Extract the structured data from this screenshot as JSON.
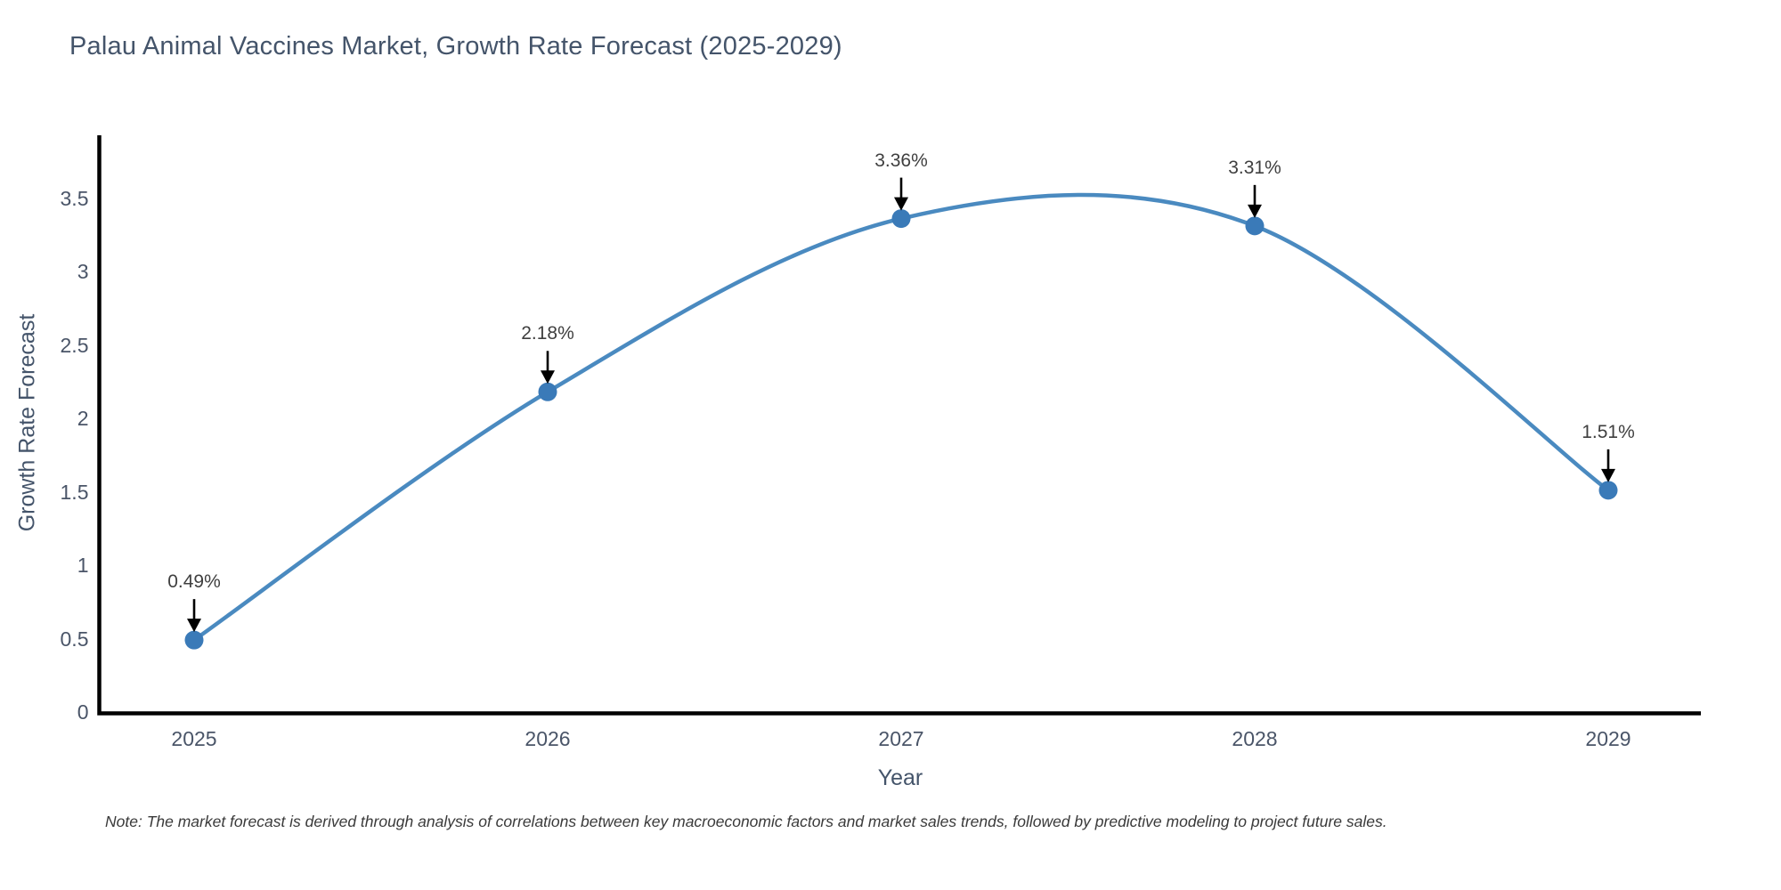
{
  "chart_data": {
    "type": "line",
    "line_shape": "spline",
    "title": "Palau Animal Vaccines Market, Growth Rate Forecast (2025-2029)",
    "xlabel": "Year",
    "ylabel": "Growth Rate Forecast",
    "x": [
      2025,
      2026,
      2027,
      2028,
      2029
    ],
    "values": [
      0.49,
      2.18,
      3.36,
      3.31,
      1.51
    ],
    "point_labels": [
      "0.49%",
      "2.18%",
      "3.36%",
      "3.31%",
      "1.51%"
    ],
    "xtick_labels": [
      "2025",
      "2026",
      "2027",
      "2028",
      "2029"
    ],
    "yticks": [
      0,
      0.5,
      1,
      1.5,
      2,
      2.5,
      3,
      3.5
    ],
    "ytick_labels": [
      "0",
      "0.5",
      "1",
      "1.5",
      "2",
      "2.5",
      "3",
      "3.5"
    ],
    "ylim": [
      0,
      3.94
    ],
    "grid": false,
    "legend_position": "none",
    "line_color": "#4a8ac0",
    "marker_color": "#3a7ab8",
    "axis_color": "#000000",
    "annotation_arrow_color": "#000000"
  },
  "note": "Note: The market forecast is derived through analysis of correlations between key macroeconomic factors and market sales trends, followed by predictive modeling to project future sales."
}
